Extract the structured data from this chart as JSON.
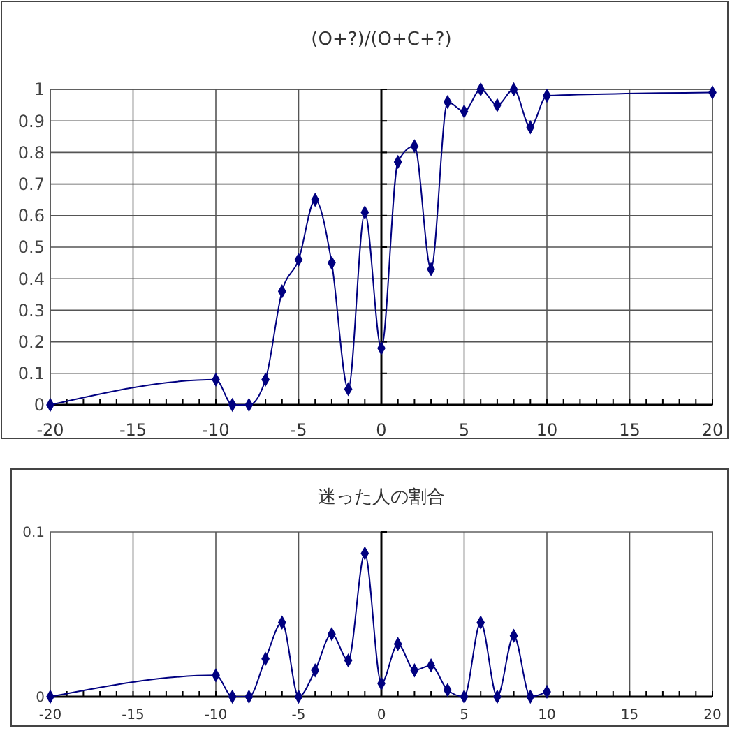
{
  "chart_data": [
    {
      "type": "line",
      "title": "(O+?)/(O+C+?)",
      "marker": "diamond",
      "line_style": "solid",
      "grid": true,
      "x": [
        -20,
        -10,
        -9,
        -8,
        -7,
        -6,
        -5,
        -4,
        -3,
        -2,
        -1,
        0,
        1,
        2,
        3,
        4,
        5,
        6,
        7,
        8,
        9,
        10,
        20
      ],
      "series": [
        {
          "color": "#000080",
          "values": [
            0,
            0.08,
            0,
            0,
            0.08,
            0.36,
            0.46,
            0.65,
            0.45,
            0.05,
            0.61,
            0.18,
            0.77,
            0.82,
            0.43,
            0.96,
            0.93,
            1.0,
            0.95,
            1.0,
            0.88,
            0.98,
            0.99
          ]
        }
      ],
      "xlim": [
        -20,
        20
      ],
      "ylim": [
        0,
        1
      ],
      "xticks": [
        -20,
        {
          "value": -19,
          "label": null
        },
        {
          "value": -18,
          "label": null
        },
        {
          "value": -17,
          "label": null
        },
        {
          "value": -16,
          "label": null
        },
        -15,
        {
          "value": -14,
          "label": null
        },
        {
          "value": -13,
          "label": null
        },
        {
          "value": -12,
          "label": null
        },
        {
          "value": -11,
          "label": null
        },
        -10,
        {
          "value": -9,
          "label": null
        },
        {
          "value": -8,
          "label": null
        },
        {
          "value": -7,
          "label": null
        },
        {
          "value": -6,
          "label": null
        },
        -5,
        {
          "value": -4,
          "label": null
        },
        {
          "value": -3,
          "label": null
        },
        {
          "value": -2,
          "label": null
        },
        {
          "value": -1,
          "label": null
        },
        0,
        {
          "value": 1,
          "label": null
        },
        {
          "value": 2,
          "label": null
        },
        {
          "value": 3,
          "label": null
        },
        {
          "value": 4,
          "label": null
        },
        5,
        {
          "value": 6,
          "label": null
        },
        {
          "value": 7,
          "label": null
        },
        {
          "value": 8,
          "label": null
        },
        {
          "value": 9,
          "label": null
        },
        10,
        {
          "value": 11,
          "label": null
        },
        {
          "value": 12,
          "label": null
        },
        {
          "value": 13,
          "label": null
        },
        {
          "value": 14,
          "label": null
        },
        15,
        {
          "value": 16,
          "label": null
        },
        {
          "value": 17,
          "label": null
        },
        {
          "value": 18,
          "label": null
        },
        {
          "value": 19,
          "label": null
        },
        20
      ],
      "yticks": [
        0,
        0.1,
        0.2,
        0.3,
        0.4,
        0.5,
        0.6,
        0.7,
        0.8,
        0.9,
        1
      ]
    },
    {
      "type": "line",
      "title": "迷った人の割合",
      "marker": "diamond",
      "line_style": "solid",
      "grid": "x",
      "x": [
        -20,
        -10,
        -9,
        -8,
        -7,
        -6,
        -5,
        -4,
        -3,
        -2,
        -1,
        0,
        1,
        2,
        3,
        4,
        5,
        6,
        7,
        8,
        9,
        10
      ],
      "series": [
        {
          "color": "#000080",
          "values": [
            0,
            0.013,
            0,
            0,
            0.023,
            0.045,
            0,
            0.016,
            0.038,
            0.022,
            0.087,
            0.008,
            0.032,
            0.016,
            0.019,
            0.004,
            0,
            0.045,
            0,
            0.037,
            0,
            0.003
          ]
        }
      ],
      "xlim": [
        -20,
        20
      ],
      "ylim": [
        0,
        0.1
      ],
      "xticks": [
        -20,
        {
          "value": -19,
          "label": null
        },
        {
          "value": -18,
          "label": null
        },
        {
          "value": -17,
          "label": null
        },
        {
          "value": -16,
          "label": null
        },
        -15,
        {
          "value": -14,
          "label": null
        },
        {
          "value": -13,
          "label": null
        },
        {
          "value": -12,
          "label": null
        },
        {
          "value": -11,
          "label": null
        },
        -10,
        {
          "value": -9,
          "label": null
        },
        {
          "value": -8,
          "label": null
        },
        {
          "value": -7,
          "label": null
        },
        {
          "value": -6,
          "label": null
        },
        -5,
        {
          "value": -4,
          "label": null
        },
        {
          "value": -3,
          "label": null
        },
        {
          "value": -2,
          "label": null
        },
        {
          "value": -1,
          "label": null
        },
        0,
        {
          "value": 1,
          "label": null
        },
        {
          "value": 2,
          "label": null
        },
        {
          "value": 3,
          "label": null
        },
        {
          "value": 4,
          "label": null
        },
        5,
        {
          "value": 6,
          "label": null
        },
        {
          "value": 7,
          "label": null
        },
        {
          "value": 8,
          "label": null
        },
        {
          "value": 9,
          "label": null
        },
        10,
        {
          "value": 11,
          "label": null
        },
        {
          "value": 12,
          "label": null
        },
        {
          "value": 13,
          "label": null
        },
        {
          "value": 14,
          "label": null
        },
        15,
        {
          "value": 16,
          "label": null
        },
        {
          "value": 17,
          "label": null
        },
        {
          "value": 18,
          "label": null
        },
        {
          "value": 19,
          "label": null
        },
        20
      ],
      "yticks": [
        0,
        0.1
      ]
    }
  ]
}
